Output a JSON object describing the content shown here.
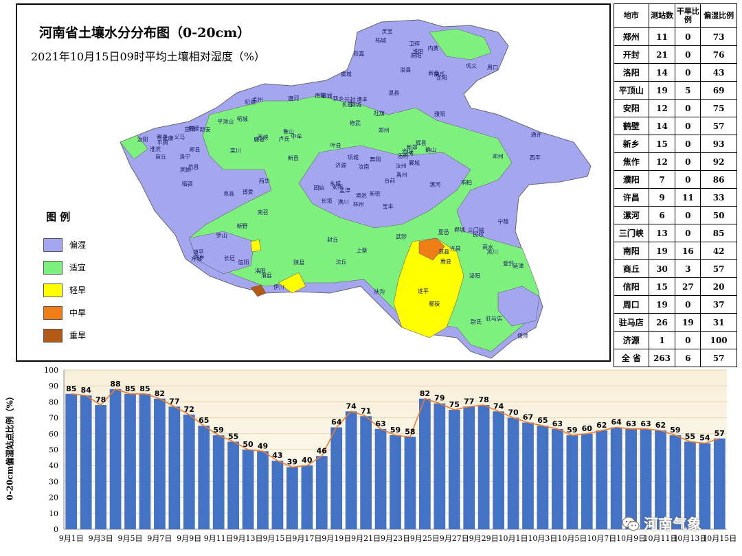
{
  "map": {
    "title": "河南省土壤水分分布图（0-20cm）",
    "subtitle": "2021年10月15日09时平均土壤相对湿度（%）",
    "legend_title": "图 例",
    "legend": [
      {
        "label": "偏湿",
        "color": "#a5a6f0"
      },
      {
        "label": "适宜",
        "color": "#7ef07e"
      },
      {
        "label": "轻旱",
        "color": "#ffff00"
      },
      {
        "label": "中旱",
        "color": "#f07e17"
      },
      {
        "label": "重旱",
        "color": "#b35a14"
      }
    ],
    "place_labels": [
      "林州",
      "安阳",
      "汤阴",
      "滑县",
      "内黄",
      "清丰",
      "南乐",
      "台前",
      "范县",
      "长垣",
      "濮阳",
      "新乡",
      "郑州",
      "中牟",
      "开封",
      "兰考",
      "民权",
      "商丘",
      "夏邑",
      "永城",
      "济源",
      "孟州",
      "巩义",
      "洛阳",
      "偃师",
      "三门峡",
      "灵宝",
      "卢氏",
      "栾川",
      "嵩县",
      "汝阳",
      "汝州",
      "禹州",
      "许昌",
      "鄢陵",
      "扶沟",
      "西华",
      "太康",
      "柘城",
      "周口",
      "淮阳",
      "项城",
      "沈丘",
      "郸城",
      "鹿邑",
      "平顶山",
      "叶县",
      "舞阳",
      "漯河",
      "西平",
      "上蔡",
      "驻马店",
      "遂平",
      "确山",
      "泌阳",
      "汝南",
      "平舆",
      "新蔡",
      "正阳",
      "息县",
      "淮滨",
      "罗山",
      "信阳",
      "光山",
      "新县",
      "商城",
      "固始",
      "潢川",
      "南阳",
      "方城",
      "社旗",
      "唐河",
      "桐柏",
      "新野",
      "邓州",
      "内乡",
      "西峡",
      "淅川",
      "南召",
      "镇平",
      "鲁山",
      "宝丰",
      "郏县",
      "登封",
      "新密",
      "新郑",
      "尉氏",
      "通许",
      "杞县",
      "睢县",
      "宁陵",
      "柘城",
      "虞城",
      "修武",
      "博爱",
      "温县",
      "武陟",
      "获嘉",
      "原阳",
      "封丘",
      "延津",
      "卫辉",
      "辉县",
      "浚县",
      "淇县",
      "鹤壁",
      "渑池",
      "义马",
      "新安",
      "宜阳",
      "洛宁",
      "伊川",
      "孟津",
      "陕县",
      "长葛",
      "襄城",
      "临颍",
      "郾城",
      "商水",
      "长垣",
      "固始"
    ]
  },
  "table": {
    "headers": [
      "地市",
      "测站数",
      "干旱比例",
      "偏湿比例"
    ],
    "rows": [
      [
        "郑州",
        "11",
        "0",
        "73"
      ],
      [
        "开封",
        "21",
        "0",
        "76"
      ],
      [
        "洛阳",
        "14",
        "0",
        "43"
      ],
      [
        "平顶山",
        "19",
        "5",
        "69"
      ],
      [
        "安阳",
        "12",
        "0",
        "75"
      ],
      [
        "鹤壁",
        "14",
        "0",
        "57"
      ],
      [
        "新乡",
        "15",
        "0",
        "93"
      ],
      [
        "焦作",
        "12",
        "0",
        "92"
      ],
      [
        "濮阳",
        "7",
        "0",
        "86"
      ],
      [
        "许昌",
        "9",
        "11",
        "33"
      ],
      [
        "漯河",
        "6",
        "0",
        "50"
      ],
      [
        "三门峡",
        "13",
        "0",
        "85"
      ],
      [
        "南阳",
        "19",
        "16",
        "42"
      ],
      [
        "商丘",
        "30",
        "3",
        "57"
      ],
      [
        "信阳",
        "15",
        "27",
        "20"
      ],
      [
        "周口",
        "19",
        "0",
        "37"
      ],
      [
        "驻马店",
        "26",
        "19",
        "31"
      ],
      [
        "济源",
        "1",
        "0",
        "100"
      ],
      [
        "全 省",
        "263",
        "6",
        "57"
      ]
    ]
  },
  "chart_data": {
    "type": "bar",
    "ylabel": "0-20cm偏湿站点比例（%）",
    "ylim": [
      0,
      100
    ],
    "yticks": [
      0,
      10,
      20,
      30,
      40,
      50,
      60,
      70,
      80,
      90,
      100
    ],
    "categories": [
      "9月1日",
      "9月2日",
      "9月3日",
      "9月4日",
      "9月5日",
      "9月6日",
      "9月7日",
      "9月8日",
      "9月9日",
      "9月10日",
      "9月11日",
      "9月12日",
      "9月13日",
      "9月14日",
      "9月15日",
      "9月16日",
      "9月17日",
      "9月18日",
      "9月19日",
      "9月20日",
      "9月21日",
      "9月22日",
      "9月23日",
      "9月24日",
      "9月25日",
      "9月26日",
      "9月27日",
      "9月28日",
      "9月29日",
      "9月30日",
      "10月1日",
      "10月2日",
      "10月3日",
      "10月4日",
      "10月5日",
      "10月6日",
      "10月7日",
      "10月8日",
      "10月9日",
      "10月10日",
      "10月11日",
      "10月12日",
      "10月13日",
      "10月14日",
      "10月15日"
    ],
    "tick_labels_shown": [
      "9月1日",
      "9月3日",
      "9月5日",
      "9月7日",
      "9月9日",
      "9月11日",
      "9月13日",
      "9月15日",
      "9月17日",
      "9月19日",
      "9月21日",
      "9月23日",
      "9月25日",
      "9月27日",
      "9月29日",
      "10月1日",
      "10月3日",
      "10月5日",
      "10月7日",
      "10月9日",
      "10月11日",
      "10月13日",
      "10月15日"
    ],
    "values": [
      85,
      84,
      78,
      88,
      85,
      85,
      82,
      77,
      72,
      65,
      59,
      55,
      50,
      49,
      43,
      39,
      40,
      46,
      64,
      74,
      71,
      63,
      59,
      58,
      82,
      79,
      75,
      77,
      78,
      74,
      70,
      67,
      65,
      63,
      59,
      60,
      62,
      64,
      63,
      63,
      62,
      59,
      55,
      54,
      57
    ],
    "bar_color": "#4472c4",
    "line_color": "#ed7d31",
    "background_gradient": [
      "#f8efd8",
      "#fffdf8"
    ],
    "grid": true
  },
  "watermark": {
    "text": "河南气象"
  }
}
